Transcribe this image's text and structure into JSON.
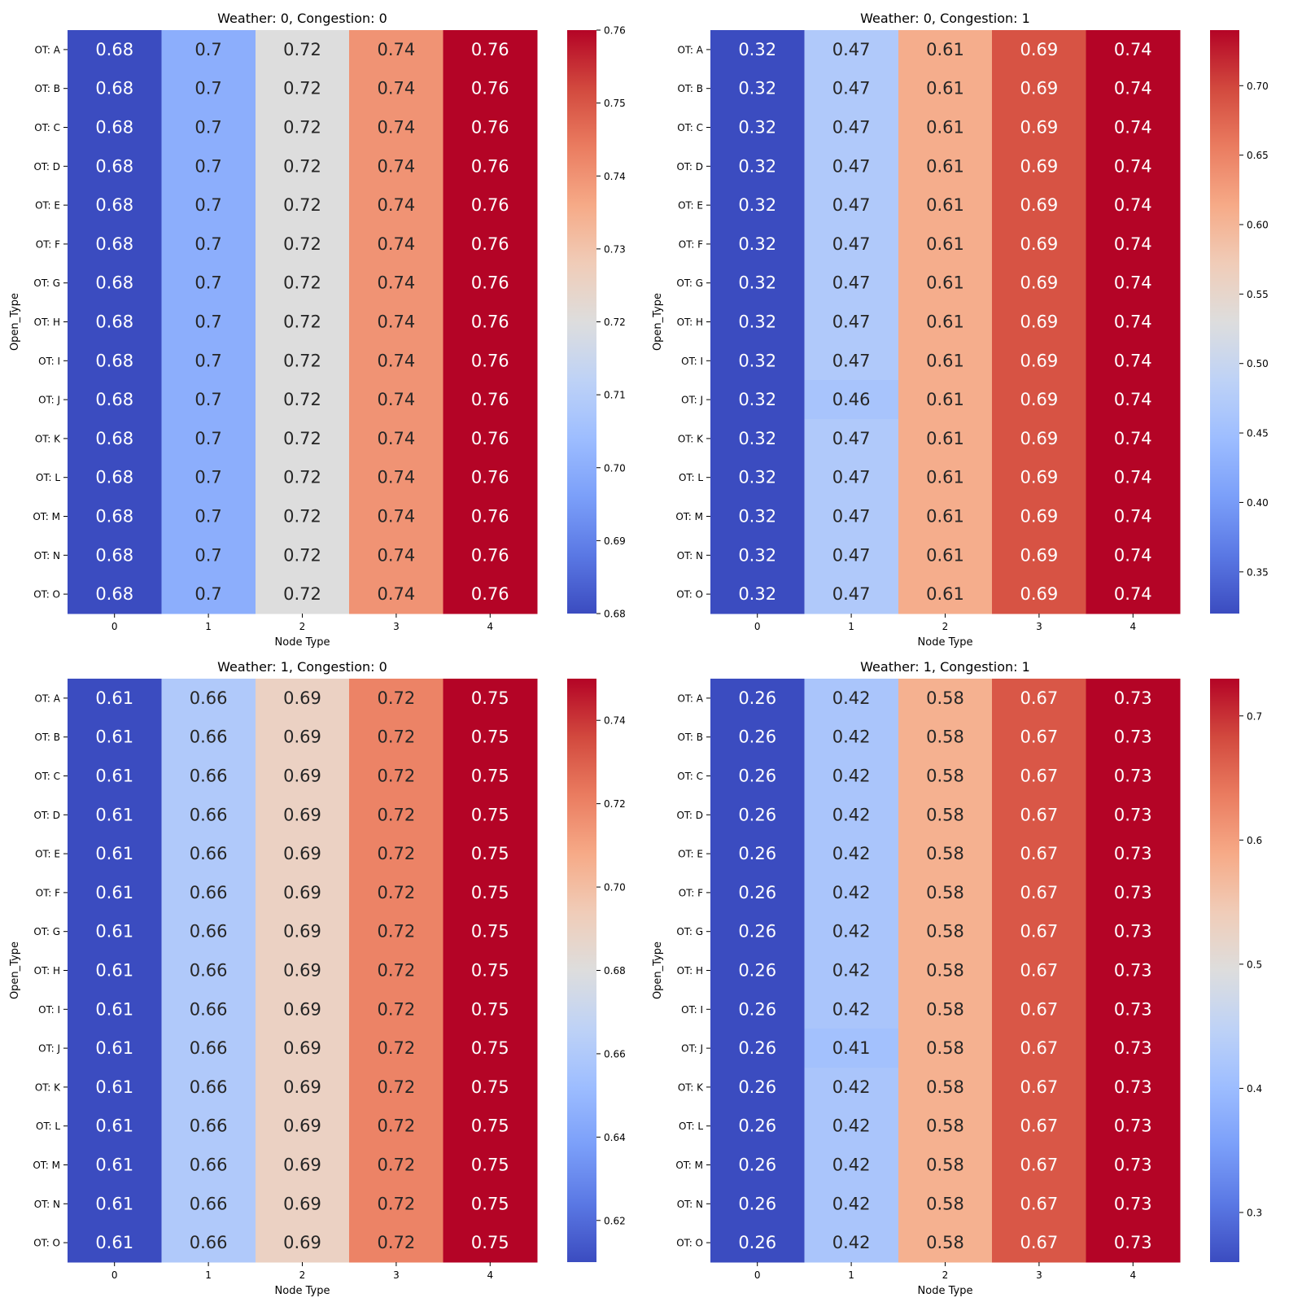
{
  "chart_data": [
    {
      "type": "heatmap",
      "title": "Weather: 0, Congestion: 0",
      "xlabel": "Node Type",
      "ylabel": "Open_Type",
      "x": [
        "0",
        "1",
        "2",
        "3",
        "4"
      ],
      "y": [
        "OT: A",
        "OT: B",
        "OT: C",
        "OT: D",
        "OT: E",
        "OT: F",
        "OT: G",
        "OT: H",
        "OT: I",
        "OT: J",
        "OT: K",
        "OT: L",
        "OT: M",
        "OT: N",
        "OT: O"
      ],
      "values": [
        [
          0.68,
          0.7,
          0.72,
          0.74,
          0.76
        ],
        [
          0.68,
          0.7,
          0.72,
          0.74,
          0.76
        ],
        [
          0.68,
          0.7,
          0.72,
          0.74,
          0.76
        ],
        [
          0.68,
          0.7,
          0.72,
          0.74,
          0.76
        ],
        [
          0.68,
          0.7,
          0.72,
          0.74,
          0.76
        ],
        [
          0.68,
          0.7,
          0.72,
          0.74,
          0.76
        ],
        [
          0.68,
          0.7,
          0.72,
          0.74,
          0.76
        ],
        [
          0.68,
          0.7,
          0.72,
          0.74,
          0.76
        ],
        [
          0.68,
          0.7,
          0.72,
          0.74,
          0.76
        ],
        [
          0.68,
          0.7,
          0.72,
          0.74,
          0.76
        ],
        [
          0.68,
          0.7,
          0.72,
          0.74,
          0.76
        ],
        [
          0.68,
          0.7,
          0.72,
          0.74,
          0.76
        ],
        [
          0.68,
          0.7,
          0.72,
          0.74,
          0.76
        ],
        [
          0.68,
          0.7,
          0.72,
          0.74,
          0.76
        ],
        [
          0.68,
          0.7,
          0.72,
          0.74,
          0.76
        ]
      ],
      "colorbar": {
        "range": [
          0.68,
          0.76
        ],
        "ticks": [
          "0.68",
          "0.69",
          "0.70",
          "0.71",
          "0.72",
          "0.73",
          "0.74",
          "0.75",
          "0.76"
        ]
      },
      "colormap": "coolwarm"
    },
    {
      "type": "heatmap",
      "title": "Weather: 0, Congestion: 1",
      "xlabel": "Node Type",
      "ylabel": "Open_Type",
      "x": [
        "0",
        "1",
        "2",
        "3",
        "4"
      ],
      "y": [
        "OT: A",
        "OT: B",
        "OT: C",
        "OT: D",
        "OT: E",
        "OT: F",
        "OT: G",
        "OT: H",
        "OT: I",
        "OT: J",
        "OT: K",
        "OT: L",
        "OT: M",
        "OT: N",
        "OT: O"
      ],
      "values": [
        [
          0.32,
          0.47,
          0.61,
          0.69,
          0.74
        ],
        [
          0.32,
          0.47,
          0.61,
          0.69,
          0.74
        ],
        [
          0.32,
          0.47,
          0.61,
          0.69,
          0.74
        ],
        [
          0.32,
          0.47,
          0.61,
          0.69,
          0.74
        ],
        [
          0.32,
          0.47,
          0.61,
          0.69,
          0.74
        ],
        [
          0.32,
          0.47,
          0.61,
          0.69,
          0.74
        ],
        [
          0.32,
          0.47,
          0.61,
          0.69,
          0.74
        ],
        [
          0.32,
          0.47,
          0.61,
          0.69,
          0.74
        ],
        [
          0.32,
          0.47,
          0.61,
          0.69,
          0.74
        ],
        [
          0.32,
          0.46,
          0.61,
          0.69,
          0.74
        ],
        [
          0.32,
          0.47,
          0.61,
          0.69,
          0.74
        ],
        [
          0.32,
          0.47,
          0.61,
          0.69,
          0.74
        ],
        [
          0.32,
          0.47,
          0.61,
          0.69,
          0.74
        ],
        [
          0.32,
          0.47,
          0.61,
          0.69,
          0.74
        ],
        [
          0.32,
          0.47,
          0.61,
          0.69,
          0.74
        ]
      ],
      "colorbar": {
        "range": [
          0.32,
          0.74
        ],
        "ticks": [
          "0.35",
          "0.40",
          "0.45",
          "0.50",
          "0.55",
          "0.60",
          "0.65",
          "0.70"
        ]
      },
      "colormap": "coolwarm"
    },
    {
      "type": "heatmap",
      "title": "Weather: 1, Congestion: 0",
      "xlabel": "Node Type",
      "ylabel": "Open_Type",
      "x": [
        "0",
        "1",
        "2",
        "3",
        "4"
      ],
      "y": [
        "OT: A",
        "OT: B",
        "OT: C",
        "OT: D",
        "OT: E",
        "OT: F",
        "OT: G",
        "OT: H",
        "OT: I",
        "OT: J",
        "OT: K",
        "OT: L",
        "OT: M",
        "OT: N",
        "OT: O"
      ],
      "values": [
        [
          0.61,
          0.66,
          0.69,
          0.72,
          0.75
        ],
        [
          0.61,
          0.66,
          0.69,
          0.72,
          0.75
        ],
        [
          0.61,
          0.66,
          0.69,
          0.72,
          0.75
        ],
        [
          0.61,
          0.66,
          0.69,
          0.72,
          0.75
        ],
        [
          0.61,
          0.66,
          0.69,
          0.72,
          0.75
        ],
        [
          0.61,
          0.66,
          0.69,
          0.72,
          0.75
        ],
        [
          0.61,
          0.66,
          0.69,
          0.72,
          0.75
        ],
        [
          0.61,
          0.66,
          0.69,
          0.72,
          0.75
        ],
        [
          0.61,
          0.66,
          0.69,
          0.72,
          0.75
        ],
        [
          0.61,
          0.66,
          0.69,
          0.72,
          0.75
        ],
        [
          0.61,
          0.66,
          0.69,
          0.72,
          0.75
        ],
        [
          0.61,
          0.66,
          0.69,
          0.72,
          0.75
        ],
        [
          0.61,
          0.66,
          0.69,
          0.72,
          0.75
        ],
        [
          0.61,
          0.66,
          0.69,
          0.72,
          0.75
        ],
        [
          0.61,
          0.66,
          0.69,
          0.72,
          0.75
        ]
      ],
      "colorbar": {
        "range": [
          0.61,
          0.75
        ],
        "ticks": [
          "0.62",
          "0.64",
          "0.66",
          "0.68",
          "0.70",
          "0.72",
          "0.74"
        ]
      },
      "colormap": "coolwarm"
    },
    {
      "type": "heatmap",
      "title": "Weather: 1, Congestion: 1",
      "xlabel": "Node Type",
      "ylabel": "Open_Type",
      "x": [
        "0",
        "1",
        "2",
        "3",
        "4"
      ],
      "y": [
        "OT: A",
        "OT: B",
        "OT: C",
        "OT: D",
        "OT: E",
        "OT: F",
        "OT: G",
        "OT: H",
        "OT: I",
        "OT: J",
        "OT: K",
        "OT: L",
        "OT: M",
        "OT: N",
        "OT: O"
      ],
      "values": [
        [
          0.26,
          0.42,
          0.58,
          0.67,
          0.73
        ],
        [
          0.26,
          0.42,
          0.58,
          0.67,
          0.73
        ],
        [
          0.26,
          0.42,
          0.58,
          0.67,
          0.73
        ],
        [
          0.26,
          0.42,
          0.58,
          0.67,
          0.73
        ],
        [
          0.26,
          0.42,
          0.58,
          0.67,
          0.73
        ],
        [
          0.26,
          0.42,
          0.58,
          0.67,
          0.73
        ],
        [
          0.26,
          0.42,
          0.58,
          0.67,
          0.73
        ],
        [
          0.26,
          0.42,
          0.58,
          0.67,
          0.73
        ],
        [
          0.26,
          0.42,
          0.58,
          0.67,
          0.73
        ],
        [
          0.26,
          0.41,
          0.58,
          0.67,
          0.73
        ],
        [
          0.26,
          0.42,
          0.58,
          0.67,
          0.73
        ],
        [
          0.26,
          0.42,
          0.58,
          0.67,
          0.73
        ],
        [
          0.26,
          0.42,
          0.58,
          0.67,
          0.73
        ],
        [
          0.26,
          0.42,
          0.58,
          0.67,
          0.73
        ],
        [
          0.26,
          0.42,
          0.58,
          0.67,
          0.73
        ]
      ],
      "colorbar": {
        "range": [
          0.26,
          0.73
        ],
        "ticks": [
          "0.3",
          "0.4",
          "0.5",
          "0.6",
          "0.7"
        ]
      },
      "colormap": "coolwarm"
    }
  ]
}
